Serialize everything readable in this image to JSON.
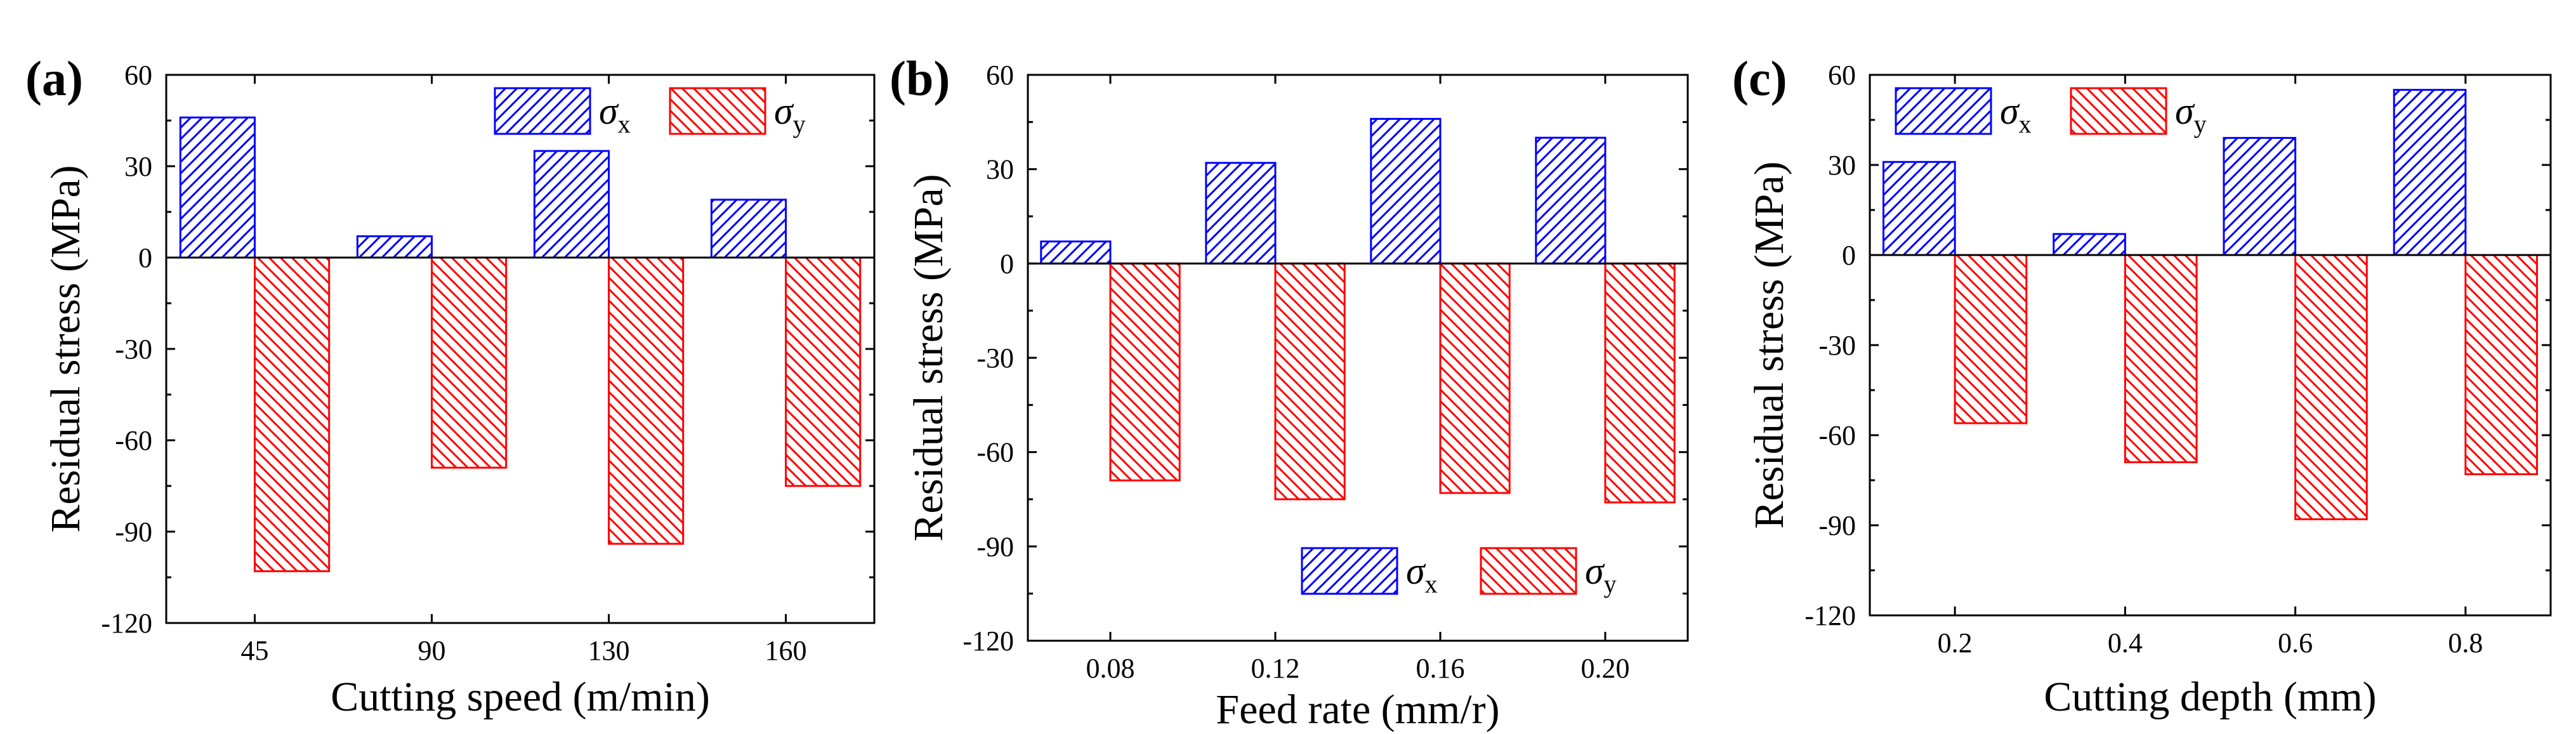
{
  "colors": {
    "sigma_x": "#0000ff",
    "sigma_y": "#ff0000",
    "axis": "#000000"
  },
  "legend": {
    "sigma_x": {
      "symbol": "σ",
      "sub": "x"
    },
    "sigma_y": {
      "symbol": "σ",
      "sub": "y"
    }
  },
  "chart_data": [
    {
      "type": "bar",
      "panel_label": "(a)",
      "categories": [
        "45",
        "90",
        "130",
        "160"
      ],
      "series": [
        {
          "name": "σx",
          "values": [
            46,
            7,
            35,
            19
          ]
        },
        {
          "name": "σy",
          "values": [
            -103,
            -69,
            -94,
            -75
          ]
        }
      ],
      "xlabel": "Cutting speed (m/min)",
      "ylabel": "Residual stress (MPa)",
      "ylim": [
        -120,
        60
      ],
      "yticks": [
        "60",
        "30",
        "0",
        "-30",
        "-60",
        "-90",
        "-120"
      ],
      "yticks_values": [
        60,
        30,
        0,
        -30,
        -60,
        -90,
        -120
      ],
      "legend_position": "top-right"
    },
    {
      "type": "bar",
      "panel_label": "(b)",
      "categories": [
        "0.08",
        "0.12",
        "0.16",
        "0.20"
      ],
      "series": [
        {
          "name": "σx",
          "values": [
            7,
            32,
            46,
            40
          ]
        },
        {
          "name": "σy",
          "values": [
            -69,
            -75,
            -73,
            -76
          ]
        }
      ],
      "xlabel": "Feed rate (mm/r)",
      "ylabel": "Residual stress (MPa)",
      "ylim": [
        -120,
        60
      ],
      "yticks": [
        "60",
        "30",
        "0",
        "-30",
        "-60",
        "-90",
        "-120"
      ],
      "yticks_values": [
        60,
        30,
        0,
        -30,
        -60,
        -90,
        -120
      ],
      "legend_position": "bottom-right"
    },
    {
      "type": "bar",
      "panel_label": "(c)",
      "categories": [
        "0.2",
        "0.4",
        "0.6",
        "0.8"
      ],
      "series": [
        {
          "name": "σx",
          "values": [
            31,
            7,
            39,
            55
          ]
        },
        {
          "name": "σy",
          "values": [
            -56,
            -69,
            -88,
            -73
          ]
        }
      ],
      "xlabel": "Cutting depth (mm)",
      "ylabel": "Residual stress (MPa)",
      "ylim": [
        -120,
        60
      ],
      "yticks": [
        "60",
        "30",
        "0",
        "-30",
        "-60",
        "-90",
        "-120"
      ],
      "yticks_values": [
        60,
        30,
        0,
        -30,
        -60,
        -90,
        -120
      ],
      "legend_position": "top-left"
    }
  ]
}
